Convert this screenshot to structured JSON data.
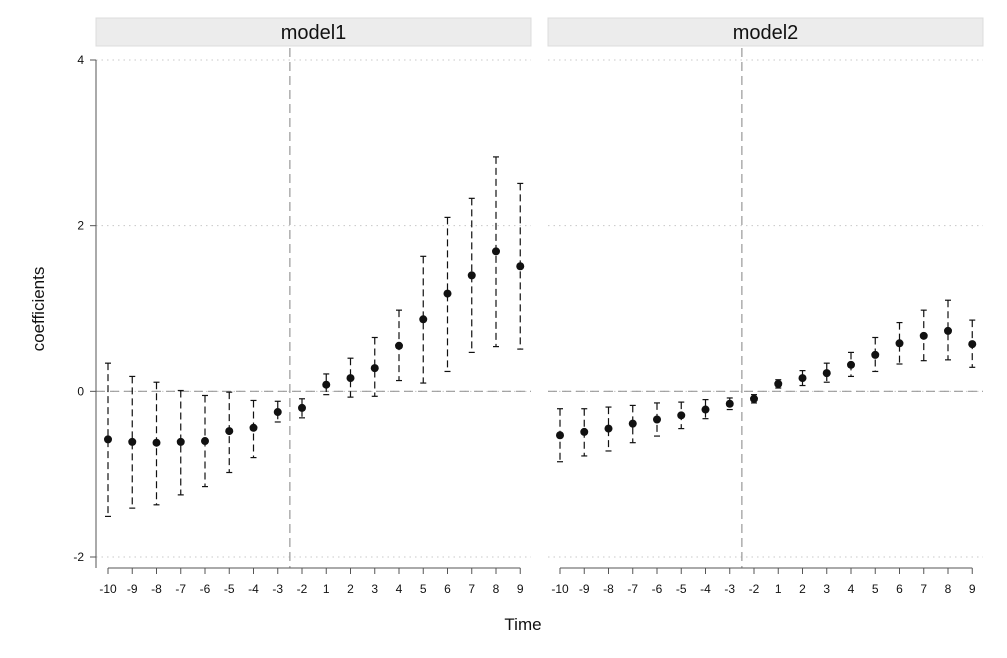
{
  "chart_data": {
    "type": "scatter",
    "subtype": "coefficient plot with 95% confidence intervals",
    "xlabel": "Time",
    "ylabel": "coefficients",
    "ylim": [
      -2,
      4
    ],
    "yticks": [
      -2,
      0,
      2,
      4
    ],
    "x_categories": [
      -10,
      -9,
      -8,
      -7,
      -6,
      -5,
      -4,
      -3,
      -2,
      1,
      2,
      3,
      4,
      5,
      6,
      7,
      8,
      9
    ],
    "grid": "horizontal dotted",
    "reference_lines": {
      "horizontal_y": 0,
      "vertical_between": [
        -3,
        -2
      ]
    },
    "colors": {
      "points": "#111111",
      "strip_bg": "#ececec",
      "refline": "#999999",
      "grid": "#c8c8c8"
    },
    "panels": [
      {
        "name": "model1",
        "estimate": [
          -0.58,
          -0.61,
          -0.62,
          -0.61,
          -0.6,
          -0.48,
          -0.44,
          -0.25,
          -0.2,
          0.08,
          0.16,
          0.28,
          0.55,
          0.87,
          1.18,
          1.4,
          1.69,
          1.51
        ],
        "lower": [
          -1.51,
          -1.41,
          -1.37,
          -1.25,
          -1.15,
          -0.98,
          -0.8,
          -0.37,
          -0.32,
          -0.04,
          -0.07,
          -0.06,
          0.13,
          0.1,
          0.24,
          0.47,
          0.54,
          0.51
        ],
        "upper": [
          0.34,
          0.18,
          0.11,
          0.01,
          -0.05,
          -0.01,
          -0.11,
          -0.12,
          -0.09,
          0.21,
          0.4,
          0.65,
          0.98,
          1.63,
          2.1,
          2.33,
          2.83,
          2.51
        ]
      },
      {
        "name": "model2",
        "estimate": [
          -0.53,
          -0.49,
          -0.45,
          -0.39,
          -0.34,
          -0.29,
          -0.22,
          -0.15,
          -0.09,
          0.09,
          0.16,
          0.22,
          0.32,
          0.44,
          0.58,
          0.67,
          0.73,
          0.57
        ],
        "lower": [
          -0.85,
          -0.78,
          -0.72,
          -0.62,
          -0.54,
          -0.45,
          -0.33,
          -0.22,
          -0.14,
          0.04,
          0.07,
          0.11,
          0.18,
          0.24,
          0.33,
          0.37,
          0.38,
          0.29
        ],
        "upper": [
          -0.21,
          -0.21,
          -0.19,
          -0.17,
          -0.14,
          -0.13,
          -0.1,
          -0.08,
          -0.04,
          0.14,
          0.25,
          0.34,
          0.47,
          0.65,
          0.83,
          0.98,
          1.1,
          0.86
        ]
      }
    ]
  }
}
